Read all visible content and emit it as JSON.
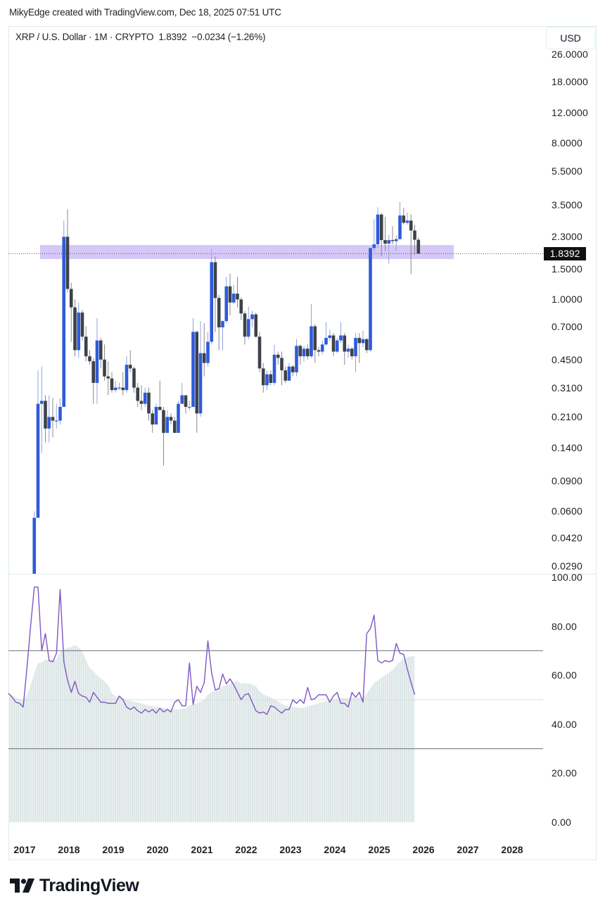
{
  "header": {
    "credit": "MikyEdge created with TradingView.com, Dec 18, 2025 07:51 UTC",
    "symbol": "XRP / U.S. Dollar · 1M · CRYPTO",
    "last": "1.8392",
    "change": "−0.0234 (−1.26%)",
    "currency_button": "USD"
  },
  "brand": {
    "logo_text": "TradingView"
  },
  "colors": {
    "up": "#2f5bd9",
    "down": "#3d4248",
    "zone": "#c7b5f5",
    "rsi_line": "#7e57c2",
    "rsi_ma_fill": "#dde6e6",
    "level_line": "#6b6f78"
  },
  "chart_data": [
    {
      "type": "candlestick",
      "title": "",
      "interval": "1M",
      "y_scale": "log",
      "ylim": [
        0.029,
        26
      ],
      "price_axis_labels": [
        "26.0000",
        "18.0000",
        "12.0000",
        "8.0000",
        "5.5000",
        "3.5000",
        "2.3000",
        "1.5000",
        "1.0000",
        "0.7000",
        "0.4500",
        "0.3100",
        "0.2100",
        "0.1400",
        "0.0900",
        "0.0600",
        "0.0420",
        "0.0290"
      ],
      "current_price_label": "1.8392",
      "current_price": 1.8392,
      "highlight_zone": {
        "low": 1.71,
        "high": 2.06
      },
      "x_labels": [
        "2017",
        "2018",
        "2019",
        "2020",
        "2021",
        "2022",
        "2023",
        "2024",
        "2025",
        "2026",
        "2027",
        "2028"
      ],
      "x_range": [
        "2016-09",
        "2028-12"
      ],
      "ohlc_columns": [
        "month",
        "open",
        "high",
        "low",
        "close"
      ],
      "candles": [
        [
          "2017-04",
          0.022,
          0.06,
          0.021,
          0.055
        ],
        [
          "2017-05",
          0.055,
          0.39,
          0.055,
          0.25
        ],
        [
          "2017-06",
          0.25,
          0.41,
          0.13,
          0.26
        ],
        [
          "2017-07",
          0.26,
          0.28,
          0.15,
          0.18
        ],
        [
          "2017-08",
          0.18,
          0.28,
          0.15,
          0.21
        ],
        [
          "2017-09",
          0.21,
          0.27,
          0.16,
          0.2
        ],
        [
          "2017-10",
          0.2,
          0.25,
          0.18,
          0.2
        ],
        [
          "2017-11",
          0.2,
          0.27,
          0.19,
          0.24
        ],
        [
          "2017-12",
          0.24,
          2.85,
          0.24,
          2.3
        ],
        [
          "2018-01",
          2.3,
          3.31,
          1.1,
          1.15
        ],
        [
          "2018-02",
          1.15,
          1.25,
          0.57,
          0.9
        ],
        [
          "2018-03",
          0.9,
          1.0,
          0.47,
          0.51
        ],
        [
          "2018-04",
          0.51,
          0.96,
          0.46,
          0.84
        ],
        [
          "2018-05",
          0.84,
          0.87,
          0.58,
          0.61
        ],
        [
          "2018-06",
          0.61,
          0.7,
          0.44,
          0.47
        ],
        [
          "2018-07",
          0.47,
          0.51,
          0.42,
          0.44
        ],
        [
          "2018-08",
          0.44,
          0.46,
          0.25,
          0.33
        ],
        [
          "2018-09",
          0.33,
          0.78,
          0.25,
          0.58
        ],
        [
          "2018-10",
          0.58,
          0.6,
          0.4,
          0.45
        ],
        [
          "2018-11",
          0.45,
          0.55,
          0.34,
          0.36
        ],
        [
          "2018-12",
          0.36,
          0.44,
          0.28,
          0.35
        ],
        [
          "2019-01",
          0.35,
          0.38,
          0.29,
          0.3
        ],
        [
          "2019-02",
          0.3,
          0.34,
          0.29,
          0.31
        ],
        [
          "2019-03",
          0.31,
          0.33,
          0.3,
          0.31
        ],
        [
          "2019-04",
          0.31,
          0.38,
          0.28,
          0.3
        ],
        [
          "2019-05",
          0.3,
          0.47,
          0.29,
          0.42
        ],
        [
          "2019-06",
          0.42,
          0.51,
          0.38,
          0.4
        ],
        [
          "2019-07",
          0.4,
          0.41,
          0.29,
          0.31
        ],
        [
          "2019-08",
          0.31,
          0.33,
          0.24,
          0.26
        ],
        [
          "2019-09",
          0.26,
          0.32,
          0.23,
          0.25
        ],
        [
          "2019-10",
          0.25,
          0.31,
          0.24,
          0.29
        ],
        [
          "2019-11",
          0.29,
          0.31,
          0.2,
          0.22
        ],
        [
          "2019-12",
          0.22,
          0.23,
          0.17,
          0.19
        ],
        [
          "2020-01",
          0.19,
          0.25,
          0.19,
          0.24
        ],
        [
          "2020-02",
          0.24,
          0.34,
          0.23,
          0.23
        ],
        [
          "2020-03",
          0.23,
          0.24,
          0.11,
          0.17
        ],
        [
          "2020-04",
          0.17,
          0.23,
          0.17,
          0.21
        ],
        [
          "2020-05",
          0.21,
          0.22,
          0.19,
          0.2
        ],
        [
          "2020-06",
          0.2,
          0.21,
          0.17,
          0.17
        ],
        [
          "2020-07",
          0.17,
          0.26,
          0.17,
          0.25
        ],
        [
          "2020-08",
          0.25,
          0.33,
          0.25,
          0.28
        ],
        [
          "2020-09",
          0.28,
          0.28,
          0.22,
          0.24
        ],
        [
          "2020-10",
          0.24,
          0.26,
          0.23,
          0.24
        ],
        [
          "2020-11",
          0.24,
          0.78,
          0.24,
          0.65
        ],
        [
          "2020-12",
          0.65,
          0.66,
          0.17,
          0.22
        ],
        [
          "2021-01",
          0.22,
          0.75,
          0.21,
          0.49
        ],
        [
          "2021-02",
          0.49,
          0.73,
          0.36,
          0.43
        ],
        [
          "2021-03",
          0.43,
          0.65,
          0.41,
          0.57
        ],
        [
          "2021-04",
          0.57,
          1.96,
          0.55,
          1.64
        ],
        [
          "2021-05",
          1.64,
          1.77,
          0.65,
          1.02
        ],
        [
          "2021-06",
          1.02,
          1.06,
          0.51,
          0.69
        ],
        [
          "2021-07",
          0.69,
          0.76,
          0.51,
          0.75
        ],
        [
          "2021-08",
          0.75,
          1.35,
          0.73,
          1.19
        ],
        [
          "2021-09",
          1.19,
          1.41,
          0.81,
          0.96
        ],
        [
          "2021-10",
          0.96,
          1.21,
          0.94,
          1.08
        ],
        [
          "2021-11",
          1.08,
          1.35,
          0.9,
          1.0
        ],
        [
          "2021-12",
          1.0,
          1.03,
          0.76,
          0.83
        ],
        [
          "2022-01",
          0.83,
          0.86,
          0.55,
          0.61
        ],
        [
          "2022-02",
          0.61,
          0.91,
          0.59,
          0.77
        ],
        [
          "2022-03",
          0.77,
          0.86,
          0.69,
          0.82
        ],
        [
          "2022-04",
          0.82,
          0.84,
          0.6,
          0.61
        ],
        [
          "2022-05",
          0.61,
          0.65,
          0.38,
          0.4
        ],
        [
          "2022-06",
          0.4,
          0.43,
          0.29,
          0.32
        ],
        [
          "2022-07",
          0.32,
          0.39,
          0.3,
          0.37
        ],
        [
          "2022-08",
          0.37,
          0.39,
          0.32,
          0.33
        ],
        [
          "2022-09",
          0.33,
          0.55,
          0.32,
          0.48
        ],
        [
          "2022-10",
          0.48,
          0.5,
          0.42,
          0.46
        ],
        [
          "2022-11",
          0.46,
          0.5,
          0.32,
          0.39
        ],
        [
          "2022-12",
          0.39,
          0.41,
          0.33,
          0.34
        ],
        [
          "2023-01",
          0.34,
          0.43,
          0.34,
          0.41
        ],
        [
          "2023-02",
          0.41,
          0.42,
          0.36,
          0.38
        ],
        [
          "2023-03",
          0.38,
          0.59,
          0.36,
          0.54
        ],
        [
          "2023-04",
          0.54,
          0.55,
          0.42,
          0.47
        ],
        [
          "2023-05",
          0.47,
          0.54,
          0.44,
          0.52
        ],
        [
          "2023-06",
          0.52,
          0.55,
          0.45,
          0.47
        ],
        [
          "2023-07",
          0.47,
          0.94,
          0.46,
          0.7
        ],
        [
          "2023-08",
          0.7,
          0.72,
          0.43,
          0.51
        ],
        [
          "2023-09",
          0.51,
          0.53,
          0.47,
          0.5
        ],
        [
          "2023-10",
          0.5,
          0.58,
          0.48,
          0.55
        ],
        [
          "2023-11",
          0.55,
          0.74,
          0.54,
          0.6
        ],
        [
          "2023-12",
          0.6,
          0.67,
          0.58,
          0.62
        ],
        [
          "2024-01",
          0.62,
          0.64,
          0.47,
          0.5
        ],
        [
          "2024-02",
          0.5,
          0.6,
          0.49,
          0.58
        ],
        [
          "2024-03",
          0.58,
          0.74,
          0.56,
          0.62
        ],
        [
          "2024-04",
          0.62,
          0.64,
          0.42,
          0.5
        ],
        [
          "2024-05",
          0.5,
          0.55,
          0.46,
          0.52
        ],
        [
          "2024-06",
          0.52,
          0.53,
          0.45,
          0.47
        ],
        [
          "2024-07",
          0.47,
          0.64,
          0.38,
          0.6
        ],
        [
          "2024-08",
          0.6,
          0.64,
          0.43,
          0.56
        ],
        [
          "2024-09",
          0.56,
          0.66,
          0.53,
          0.59
        ],
        [
          "2024-10",
          0.59,
          0.6,
          0.49,
          0.51
        ],
        [
          "2024-11",
          0.51,
          1.98,
          0.5,
          1.98
        ],
        [
          "2024-12",
          1.98,
          2.9,
          1.9,
          2.08
        ],
        [
          "2025-01",
          2.08,
          3.4,
          1.98,
          3.09
        ],
        [
          "2025-02",
          3.09,
          3.15,
          1.77,
          2.2
        ],
        [
          "2025-03",
          2.2,
          3.0,
          1.9,
          2.1
        ],
        [
          "2025-04",
          2.1,
          2.36,
          1.61,
          2.2
        ],
        [
          "2025-05",
          2.2,
          2.65,
          2.08,
          2.17
        ],
        [
          "2025-06",
          2.17,
          2.34,
          1.9,
          2.23
        ],
        [
          "2025-07",
          2.23,
          3.66,
          2.21,
          3.05
        ],
        [
          "2025-08",
          3.05,
          3.38,
          2.71,
          2.77
        ],
        [
          "2025-09",
          2.77,
          3.18,
          2.7,
          2.85
        ],
        [
          "2025-10",
          2.85,
          3.1,
          1.4,
          2.5
        ],
        [
          "2025-11",
          2.5,
          2.7,
          1.82,
          2.21
        ],
        [
          "2025-12",
          2.21,
          2.29,
          1.82,
          1.8392
        ]
      ]
    },
    {
      "type": "line",
      "title": "",
      "ylim": [
        0,
        100
      ],
      "y_axis_labels": [
        "100.00",
        "80.00",
        "60.00",
        "40.00",
        "20.00",
        "0.00"
      ],
      "levels": [
        70,
        50,
        30
      ],
      "x_start": "2016-09",
      "rsi": [
        52.6,
        51,
        49,
        48.5,
        47,
        63,
        80,
        96,
        96,
        70,
        77,
        66,
        65.5,
        69,
        95,
        65.5,
        58,
        53,
        57.5,
        52.5,
        51.5,
        51,
        49,
        53,
        51,
        49,
        49,
        48.5,
        48.5,
        48.5,
        51.5,
        50,
        47,
        46,
        47,
        45.5,
        44.5,
        46,
        45,
        46,
        44.5,
        46.5,
        45,
        46,
        45,
        49,
        50,
        47.5,
        47.5,
        65,
        48,
        55.5,
        53,
        57,
        74,
        61,
        54,
        54.5,
        60.5,
        56.5,
        58.5,
        56,
        53,
        50,
        52,
        52.5,
        49,
        45.5,
        44.5,
        45,
        44,
        47.5,
        47,
        45.7,
        44.5,
        46,
        46,
        50,
        48.5,
        50,
        48.5,
        55,
        50,
        50.5,
        52,
        52,
        52,
        49,
        51.5,
        53,
        48.5,
        48.5,
        47,
        53,
        51,
        53,
        49,
        77,
        79,
        84.5,
        66,
        65,
        66,
        65.5,
        66,
        73,
        69,
        68.5,
        62.5,
        57,
        52
      ],
      "ma_period": 14
    }
  ]
}
